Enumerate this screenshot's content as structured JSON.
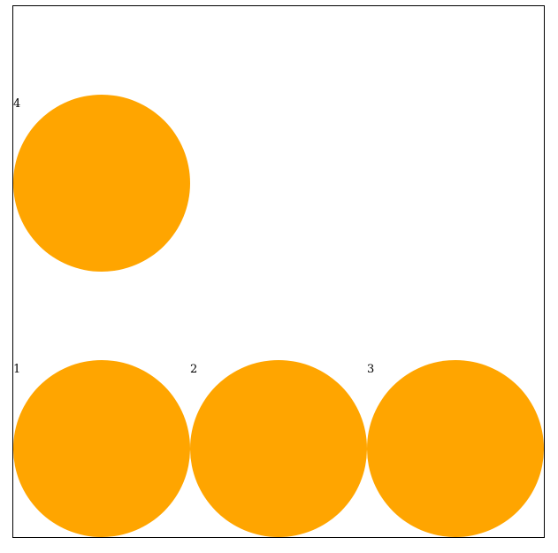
{
  "circle_color": "#FFA500",
  "circles": [
    {
      "label": "1"
    },
    {
      "label": "2"
    },
    {
      "label": "3"
    },
    {
      "label": "4"
    }
  ]
}
